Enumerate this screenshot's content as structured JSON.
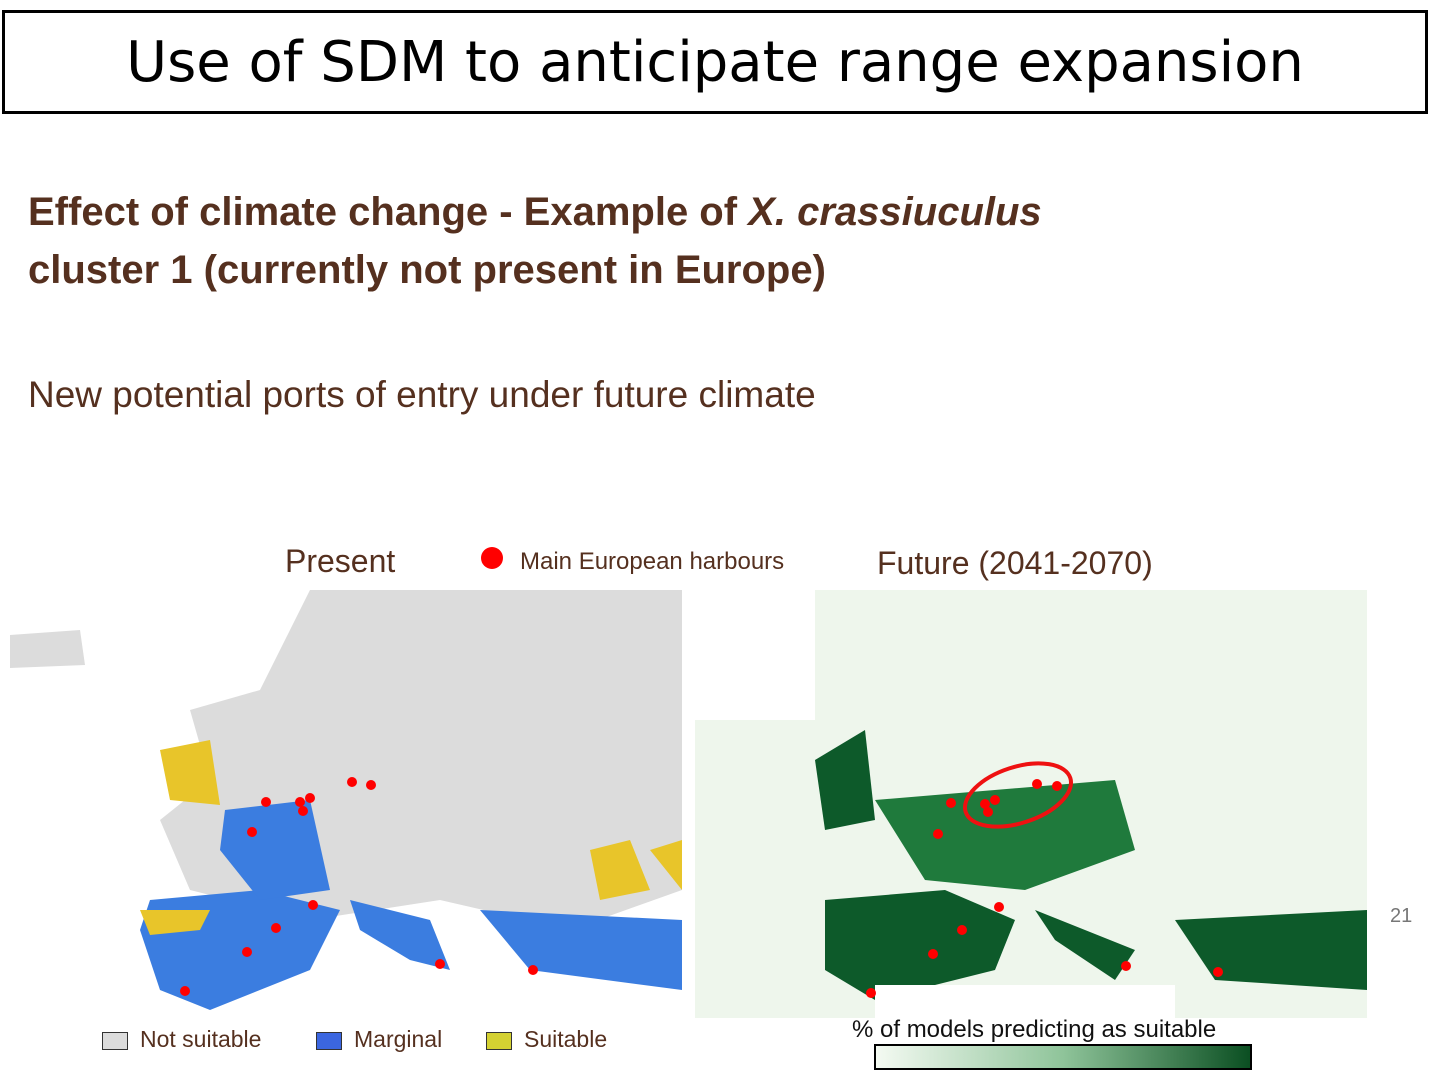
{
  "slide": {
    "title": "Use of SDM to anticipate range expansion",
    "heading": {
      "part1": "Effect of climate change - Example of",
      "species": "X. crassiuculus",
      "part2": "cluster 1 (currently not present in Europe)"
    },
    "subtitle": "New potential ports of entry under future climate",
    "maps": [
      {
        "label": "Present"
      },
      {
        "label": "Future (2041-2070)"
      }
    ],
    "harbour_legend": "Main European harbours",
    "present_legend": [
      "Not suitable",
      "Marginal",
      "Suitable"
    ],
    "colorbar_label": "% of models predicting as suitable",
    "page_number": "21"
  }
}
